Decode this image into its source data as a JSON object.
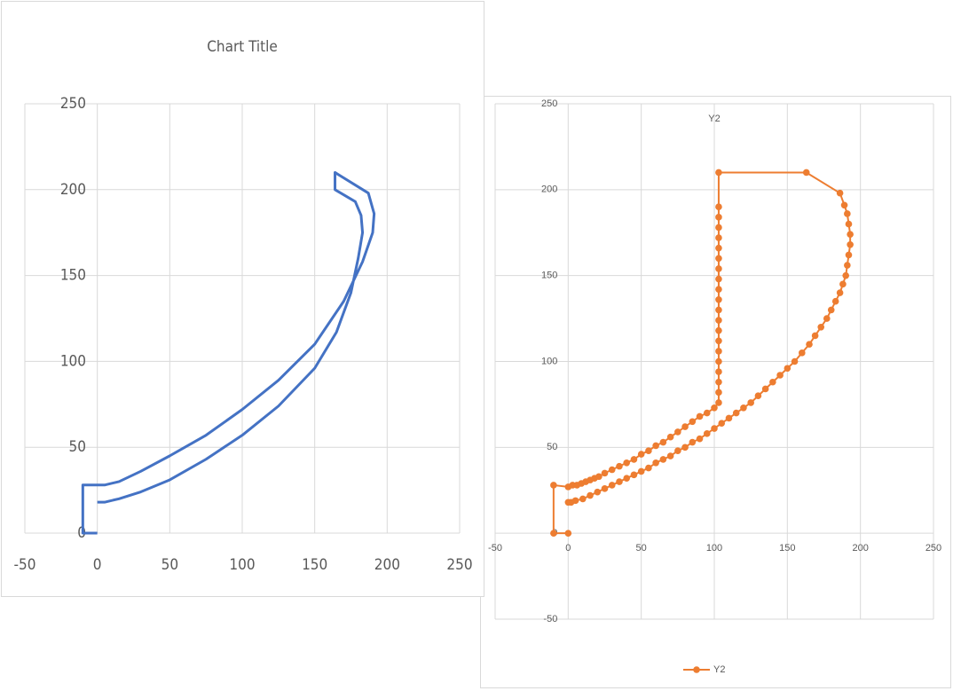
{
  "chart_data": [
    {
      "type": "line",
      "title": "Chart Title",
      "color": "#4472c4",
      "grid": true,
      "xlim": [
        -50,
        250
      ],
      "ylim": [
        0,
        250
      ],
      "xticks": [
        -50,
        0,
        50,
        100,
        150,
        200,
        250
      ],
      "yticks": [
        0,
        50,
        100,
        150,
        200,
        250
      ],
      "x": [
        0,
        -10,
        -10,
        0,
        5,
        15,
        30,
        50,
        75,
        100,
        125,
        150,
        170,
        183,
        190,
        191,
        187,
        164,
        164,
        178,
        182,
        183,
        180,
        175,
        165,
        150,
        125,
        100,
        75,
        50,
        30,
        15,
        5,
        0
      ],
      "values": [
        0,
        0,
        28,
        28,
        28,
        30,
        36,
        45,
        57,
        72,
        89,
        110,
        135,
        158,
        175,
        186,
        198,
        210,
        200,
        193,
        185,
        175,
        160,
        140,
        117,
        96,
        74,
        57,
        43,
        31,
        24,
        20,
        18,
        18
      ]
    },
    {
      "type": "line",
      "title": "Y2",
      "markers": true,
      "grid": true,
      "legend": "bottom",
      "xlim": [
        -50,
        250
      ],
      "ylim": [
        -50,
        250
      ],
      "xticks": [
        -50,
        0,
        50,
        100,
        150,
        200,
        250
      ],
      "yticks": [
        -50,
        0,
        50,
        100,
        150,
        200,
        250
      ],
      "x": [
        0,
        -10,
        -10,
        0,
        3,
        6,
        9,
        12,
        15,
        18,
        21,
        25,
        30,
        35,
        40,
        45,
        50,
        55,
        60,
        65,
        70,
        75,
        80,
        85,
        90,
        95,
        100,
        103,
        103,
        103,
        103,
        103,
        103,
        103,
        103,
        103,
        103,
        103,
        103,
        103,
        103,
        103,
        103,
        103,
        103,
        103,
        103,
        103,
        163,
        186,
        189,
        191,
        192,
        193,
        193,
        192,
        191,
        190,
        188,
        186,
        183,
        180,
        177,
        173,
        169,
        165,
        160,
        155,
        150,
        145,
        140,
        135,
        130,
        125,
        120,
        115,
        110,
        105,
        100,
        95,
        90,
        85,
        80,
        75,
        70,
        65,
        60,
        55,
        50,
        45,
        40,
        35,
        30,
        25,
        20,
        15,
        10,
        5,
        2,
        0
      ],
      "series": [
        {
          "name": "Y2",
          "color": "#ed7d31",
          "values": [
            0,
            0,
            28,
            27,
            28,
            28,
            29,
            30,
            31,
            32,
            33,
            35,
            37,
            39,
            41,
            43,
            46,
            48,
            51,
            53,
            56,
            59,
            62,
            65,
            68,
            70,
            73,
            76,
            82,
            88,
            94,
            100,
            106,
            112,
            118,
            124,
            130,
            136,
            142,
            148,
            154,
            160,
            166,
            172,
            178,
            184,
            190,
            210,
            210,
            198,
            191,
            186,
            180,
            174,
            168,
            162,
            156,
            150,
            145,
            140,
            135,
            130,
            125,
            120,
            115,
            110,
            105,
            100,
            96,
            92,
            88,
            84,
            80,
            76,
            73,
            70,
            67,
            64,
            61,
            58,
            55,
            53,
            50,
            48,
            45,
            43,
            41,
            38,
            36,
            34,
            32,
            30,
            28,
            26,
            24,
            22,
            20,
            19,
            18,
            18
          ]
        }
      ]
    }
  ]
}
